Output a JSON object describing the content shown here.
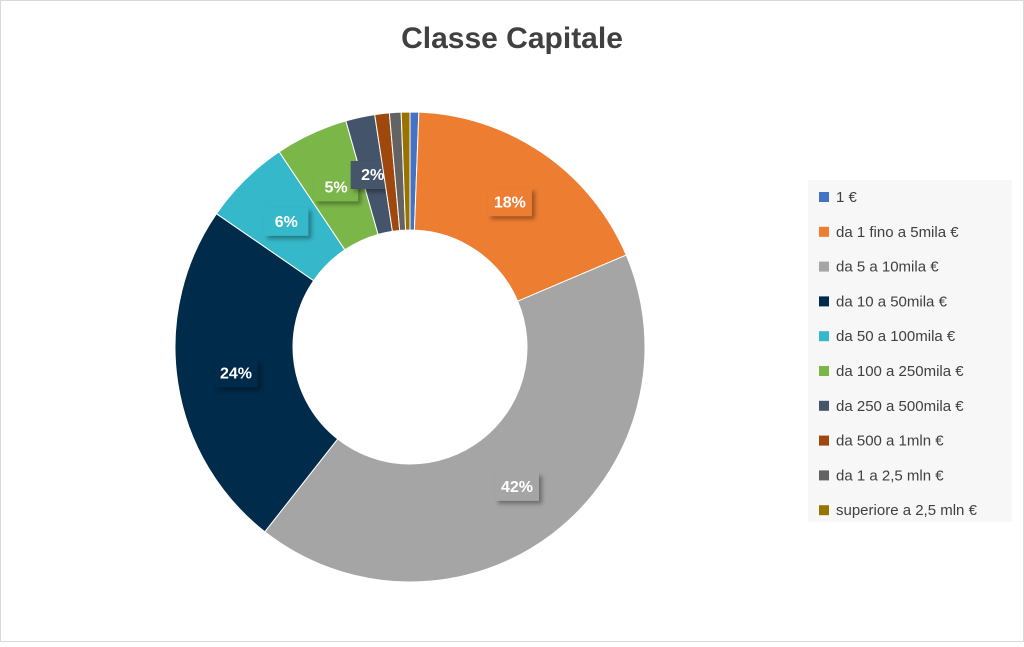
{
  "chart_data": {
    "type": "donut",
    "title": "Classe Capitale",
    "categories": [
      "1 €",
      "da 1 fino a 5mila €",
      "da 5 a 10mila €",
      "da 10 a 50mila €",
      "da 50 a 100mila €",
      "da 100 a 250mila €",
      "da 250 a 500mila €",
      "da 500 a 1mln €",
      "da 1 a 2,5 mln €",
      "superiore a  2,5 mln €"
    ],
    "values": [
      0.6,
      18,
      42,
      24,
      6,
      5,
      2,
      1,
      0.8,
      0.6
    ],
    "value_labels": [
      null,
      "18%",
      "42%",
      "24%",
      "6%",
      "5%",
      "2%",
      null,
      null,
      null
    ],
    "colors": [
      "#4472c4",
      "#ed7d31",
      "#a5a5a5",
      "#002b4a",
      "#35b8c9",
      "#7ab648",
      "#44546a",
      "#9e480e",
      "#636363",
      "#997300"
    ],
    "legend": "right"
  }
}
